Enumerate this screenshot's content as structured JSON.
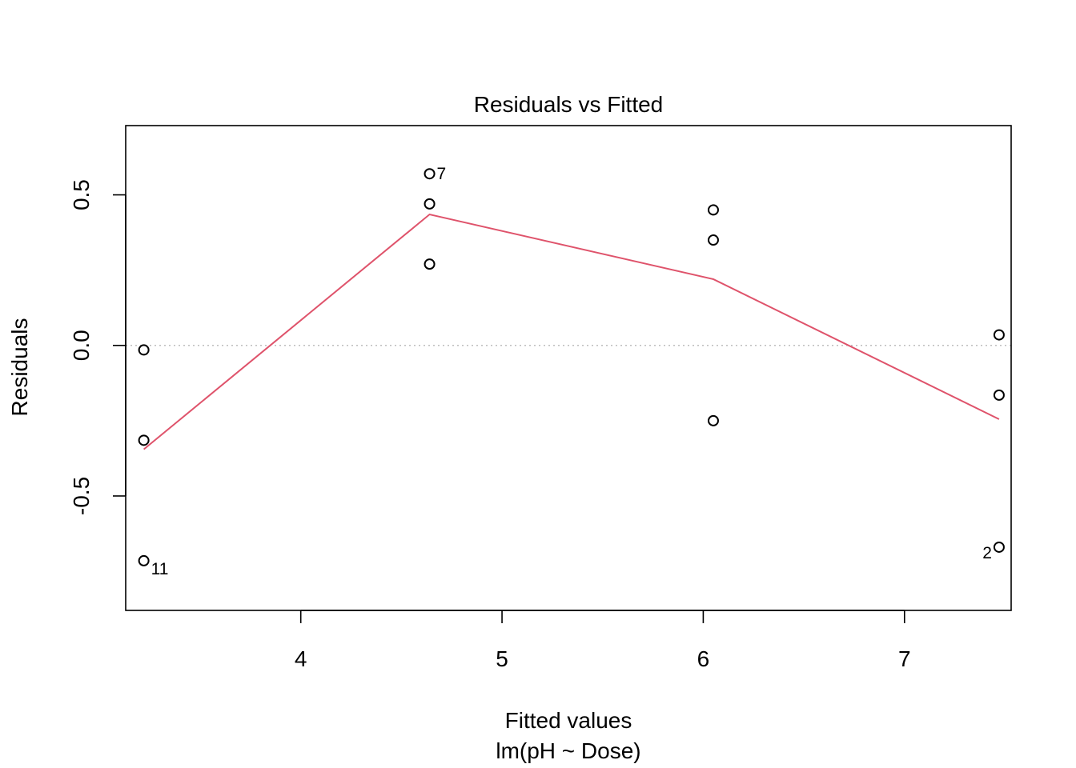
{
  "chart_data": {
    "type": "scatter",
    "title": "Residuals vs Fitted",
    "xlabel": "Fitted values",
    "subtitle": "lm(pH ~ Dose)",
    "ylabel": "Residuals",
    "xlim": [
      3.13,
      7.53
    ],
    "ylim": [
      -0.88,
      0.73
    ],
    "x_ticks": [
      4,
      5,
      6,
      7
    ],
    "x_tick_labels": [
      "4",
      "5",
      "6",
      "7"
    ],
    "y_ticks": [
      -0.5,
      0.0,
      0.5
    ],
    "y_tick_labels": [
      "-0.5",
      "0.0",
      "0.5"
    ],
    "grid": false,
    "zero_line": {
      "y": 0,
      "style": "dotted",
      "color": "#bebebe"
    },
    "points": [
      {
        "x": 3.22,
        "y": -0.015
      },
      {
        "x": 3.22,
        "y": -0.315
      },
      {
        "x": 3.22,
        "y": -0.715,
        "label": "11"
      },
      {
        "x": 4.64,
        "y": 0.57,
        "label": "7"
      },
      {
        "x": 4.64,
        "y": 0.47
      },
      {
        "x": 4.64,
        "y": 0.27
      },
      {
        "x": 6.05,
        "y": 0.45
      },
      {
        "x": 6.05,
        "y": 0.35
      },
      {
        "x": 6.05,
        "y": -0.25
      },
      {
        "x": 7.47,
        "y": 0.035
      },
      {
        "x": 7.47,
        "y": -0.165
      },
      {
        "x": 7.47,
        "y": -0.67,
        "label": "2"
      }
    ],
    "smoother": {
      "color": "#DF536B",
      "x": [
        3.22,
        4.64,
        6.05,
        7.47
      ],
      "y": [
        -0.345,
        0.435,
        0.22,
        -0.245
      ]
    }
  }
}
